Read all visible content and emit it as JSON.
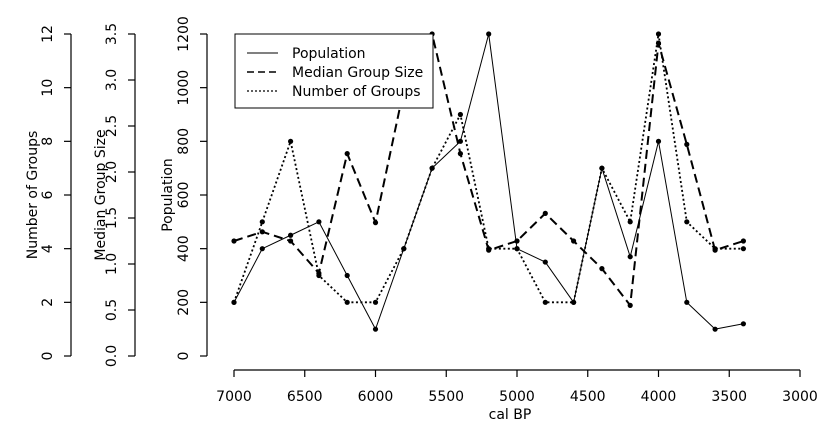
{
  "chart_data": {
    "type": "line",
    "title": "",
    "xlabel": "cal BP",
    "x": [
      7000,
      6800,
      6600,
      6400,
      6200,
      6000,
      5800,
      5600,
      5400,
      5200,
      5000,
      4800,
      4600,
      4400,
      4200,
      4000,
      3800,
      3600,
      3400
    ],
    "xticks": [
      7000,
      6500,
      6000,
      5500,
      5000,
      4500,
      4000,
      3500,
      3000
    ],
    "xlim": [
      7000,
      3000
    ],
    "axes": [
      {
        "name": "population",
        "label": "Population",
        "ylim": [
          0,
          1200
        ],
        "ticks": [
          0,
          200,
          400,
          600,
          800,
          1000,
          1200
        ]
      },
      {
        "name": "median-group-size",
        "label": "Median Group Size",
        "ylim": [
          0,
          3.5
        ],
        "ticks": [
          "0.0",
          "0.5",
          "1.0",
          "1.5",
          "2.0",
          "2.5",
          "3.0",
          "3.5"
        ]
      },
      {
        "name": "number-of-groups",
        "label": "Number of Groups",
        "ylim": [
          0,
          12
        ],
        "ticks": [
          0,
          2,
          4,
          6,
          8,
          10,
          12
        ]
      }
    ],
    "series": [
      {
        "name": "Population",
        "style": "solid",
        "axis": 0,
        "values": [
          200,
          400,
          450,
          500,
          300,
          100,
          400,
          700,
          800,
          1200,
          400,
          350,
          200,
          700,
          370,
          800,
          200,
          100,
          120
        ]
      },
      {
        "name": "Median Group Size",
        "style": "dashed",
        "axis": 1,
        "values": [
          1.25,
          1.35,
          1.25,
          0.9,
          2.2,
          1.45,
          2.9,
          3.5,
          2.2,
          1.15,
          1.25,
          1.55,
          1.25,
          0.95,
          0.55,
          3.4,
          2.3,
          1.15,
          1.25
        ]
      },
      {
        "name": "Number of Groups",
        "style": "dotted",
        "axis": 2,
        "values": [
          2,
          5,
          8,
          3,
          2,
          2,
          4,
          7,
          9,
          4,
          4,
          2,
          2,
          7,
          5,
          12,
          5,
          4,
          4
        ]
      }
    ],
    "legend": [
      "Population",
      "Median Group Size",
      "Number of Groups"
    ],
    "legend_position": "top-left",
    "grid": false
  }
}
